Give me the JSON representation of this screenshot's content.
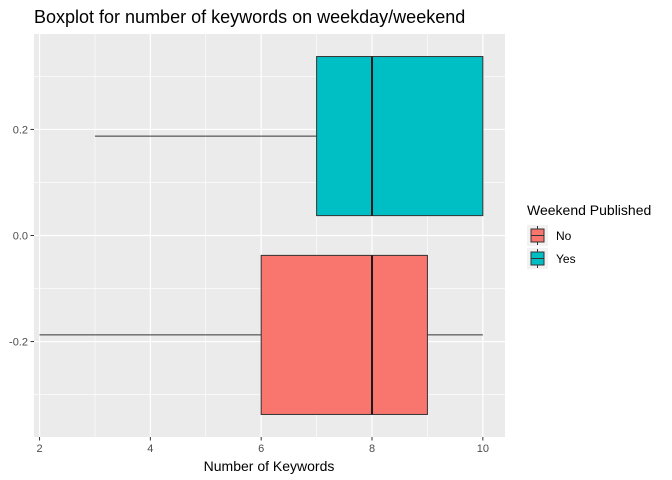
{
  "chart_data": {
    "type": "boxplot",
    "orientation": "horizontal",
    "title": "Boxplot for number of keywords on weekday/weekend",
    "xlabel": "Number of Keywords",
    "ylabel": "",
    "xlim": [
      1.9,
      10.4
    ],
    "ylim": [
      -0.38,
      0.38
    ],
    "x_ticks": [
      2,
      4,
      6,
      8,
      10
    ],
    "y_ticks": [
      -0.2,
      0.0,
      0.2
    ],
    "y_tick_labels": [
      "-0.2",
      "0.0",
      "0.2"
    ],
    "grid": true,
    "legend": {
      "title": "Weekend Published",
      "placement": "right",
      "entries": [
        "No",
        "Yes"
      ]
    },
    "series": [
      {
        "name": "No",
        "color": "#F8766D",
        "whisker_low": 2,
        "q1": 6,
        "median": 8,
        "q3": 9,
        "whisker_high": 10,
        "y_min": -0.3375,
        "y_max": -0.0375,
        "y_center": -0.1875
      },
      {
        "name": "Yes",
        "color": "#00BFC4",
        "whisker_low": 3,
        "q1": 7,
        "median": 8,
        "q3": 10,
        "whisker_high": 10,
        "y_min": 0.0375,
        "y_max": 0.3375,
        "y_center": 0.1875
      }
    ]
  }
}
